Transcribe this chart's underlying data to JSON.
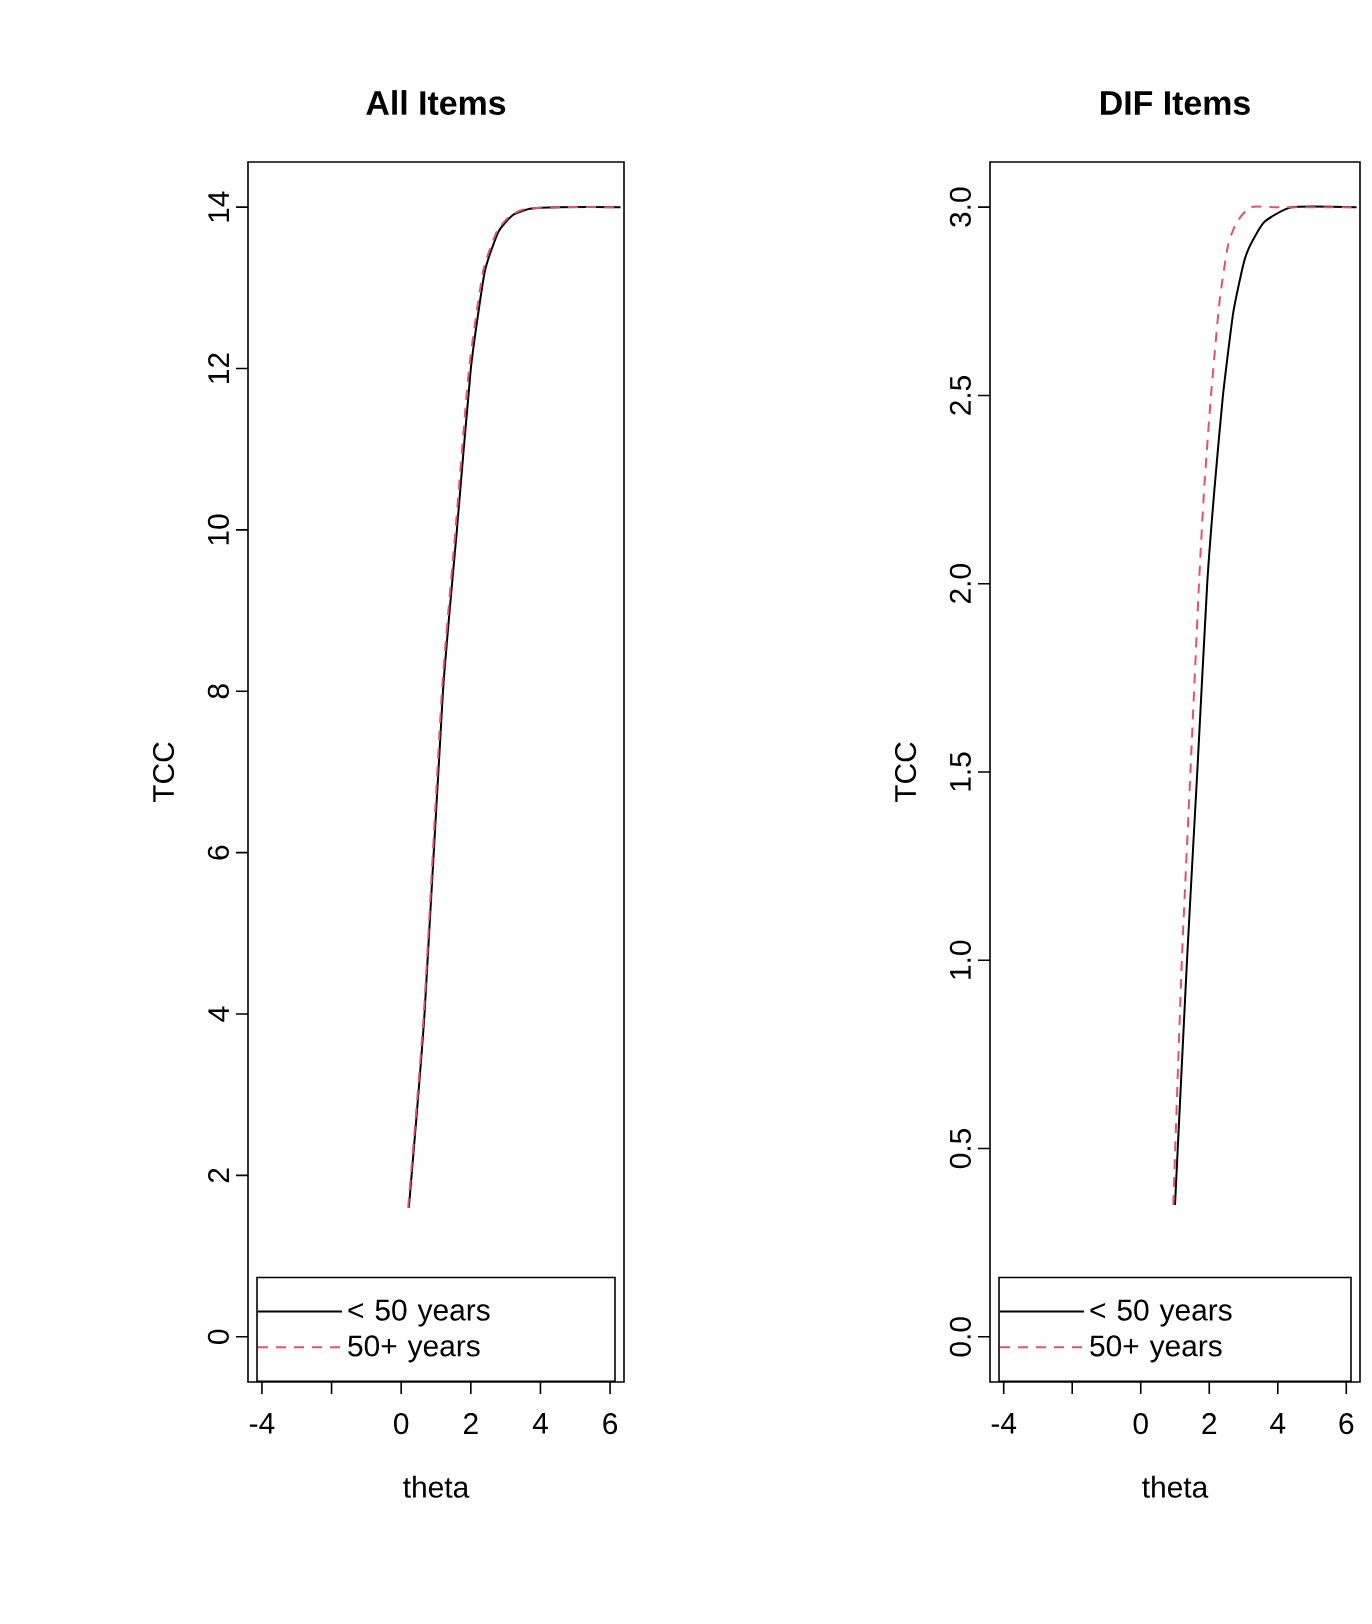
{
  "chart_data": [
    {
      "type": "line",
      "title": "All Items",
      "xlabel": "theta",
      "ylabel": "TCC",
      "xlim": [
        -4.4,
        6.4
      ],
      "ylim": [
        -0.56,
        14.56
      ],
      "xticks": [
        -4,
        {
          "value": -2,
          "label": null
        },
        0,
        2,
        4,
        6
      ],
      "yticks": [
        0,
        2,
        4,
        6,
        8,
        10,
        12,
        14
      ],
      "legend": "bottom",
      "grid": false,
      "marker": "none",
      "series": [
        {
          "name": "< 50 years",
          "color": "#000000",
          "line_style": "solid",
          "x": [
            0.22,
            0.67,
            1.2,
            1.6,
            2.0,
            2.4,
            2.8,
            3.2,
            3.7,
            4.5,
            6.3
          ],
          "values": [
            1.6,
            4,
            8,
            10,
            12,
            13.2,
            13.7,
            13.9,
            13.98,
            14,
            14
          ]
        },
        {
          "name": "50+ years",
          "color": "#df536b",
          "line_style": "dashed",
          "x": [
            0.2,
            0.65,
            1.17,
            1.56,
            1.95,
            2.35,
            2.75,
            3.15,
            3.6,
            4.5,
            6.3
          ],
          "values": [
            1.6,
            4,
            8,
            10,
            12,
            13.2,
            13.7,
            13.9,
            13.98,
            14,
            14
          ]
        }
      ]
    },
    {
      "type": "line",
      "title": "DIF Items",
      "xlabel": "theta",
      "ylabel": "TCC",
      "xlim": [
        -4.4,
        6.4
      ],
      "ylim": [
        -0.12,
        3.12
      ],
      "xticks": [
        -4,
        {
          "value": -2,
          "label": null
        },
        0,
        2,
        4,
        6
      ],
      "yticks": [
        {
          "value": 0,
          "label": "0.0"
        },
        {
          "value": 0.5,
          "label": "0.5"
        },
        {
          "value": 1,
          "label": "1.0"
        },
        {
          "value": 1.5,
          "label": "1.5"
        },
        {
          "value": 2,
          "label": "2.0"
        },
        {
          "value": 2.5,
          "label": "2.5"
        },
        {
          "value": 3,
          "label": "3.0"
        }
      ],
      "legend": "bottom",
      "grid": false,
      "marker": "none",
      "series": [
        {
          "name": "< 50 years",
          "color": "#000000",
          "line_style": "solid",
          "x": [
            1.0,
            1.35,
            1.65,
            1.94,
            2.15,
            2.4,
            2.7,
            3.0,
            3.2,
            3.6,
            4.4,
            6.3
          ],
          "values": [
            0.35,
            1.0,
            1.5,
            2.0,
            2.25,
            2.5,
            2.72,
            2.85,
            2.9,
            2.96,
            3.0,
            3.0
          ]
        },
        {
          "name": "50+ years",
          "color": "#df536b",
          "line_style": "dashed",
          "x": [
            0.95,
            1.2,
            1.45,
            1.7,
            1.85,
            2.05,
            2.3,
            2.55,
            2.8,
            3.2,
            4.0,
            6.3
          ],
          "values": [
            0.35,
            1.0,
            1.5,
            2.0,
            2.25,
            2.5,
            2.75,
            2.9,
            2.96,
            3.0,
            3.0,
            3.0
          ]
        }
      ]
    }
  ]
}
